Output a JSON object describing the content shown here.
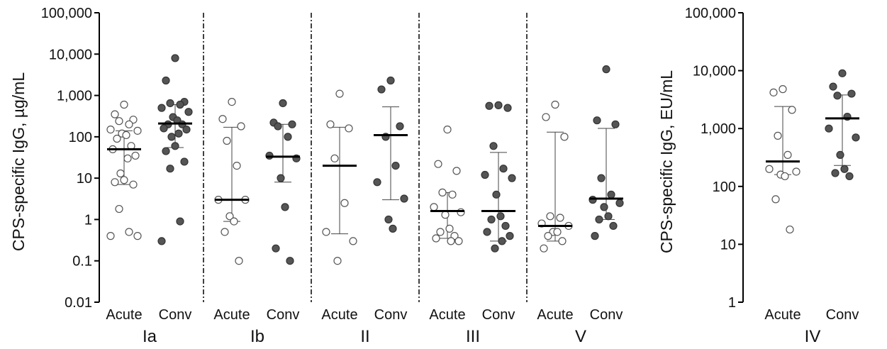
{
  "chart_data": [
    {
      "type": "scatter",
      "scale": "log",
      "ylabel": "CPS-specific IgG, µg/mL",
      "ylim": [
        0.01,
        100000
      ],
      "yticks": [
        "0.01",
        "0.1",
        "1",
        "10",
        "100",
        "1,000",
        "10,000",
        "100,000"
      ],
      "groups": [
        {
          "name": "Ia",
          "series": [
            {
              "name": "Acute",
              "fill": "open",
              "median": 50,
              "range": [
                7,
                140
              ],
              "values": [
                600,
                350,
                260,
                240,
                200,
                150,
                140,
                120,
                110,
                90,
                60,
                50,
                35,
                30,
                13,
                9,
                8,
                7,
                1.8,
                0.5,
                0.4,
                0.4
              ]
            },
            {
              "name": "Conv",
              "fill": "filled",
              "median": 210,
              "range": [
                55,
                600
              ],
              "values": [
                8000,
                2300,
                700,
                650,
                600,
                500,
                400,
                300,
                250,
                200,
                200,
                160,
                150,
                120,
                100,
                60,
                45,
                25,
                17,
                0.9,
                0.3
              ]
            }
          ]
        },
        {
          "name": "Ib",
          "series": [
            {
              "name": "Acute",
              "fill": "open",
              "median": 3,
              "range": [
                0.9,
                170
              ],
              "values": [
                700,
                270,
                180,
                80,
                20,
                3,
                3,
                1.2,
                0.9,
                0.5,
                0.1
              ]
            },
            {
              "name": "Conv",
              "fill": "filled",
              "median": 33,
              "range": [
                8,
                200
              ],
              "values": [
                650,
                220,
                200,
                180,
                100,
                35,
                30,
                10,
                2,
                0.2,
                0.1
              ]
            }
          ]
        },
        {
          "name": "II",
          "series": [
            {
              "name": "Acute",
              "fill": "open",
              "median": 20,
              "range": [
                0.45,
                170
              ],
              "values": [
                1100,
                200,
                160,
                30,
                2.5,
                0.5,
                0.3,
                0.1
              ]
            },
            {
              "name": "Conv",
              "fill": "filled",
              "median": 110,
              "range": [
                3,
                530
              ],
              "values": [
                2300,
                1400,
                180,
                100,
                20,
                8,
                3.2,
                1,
                0.6
              ]
            }
          ]
        },
        {
          "name": "III",
          "series": [
            {
              "name": "Acute",
              "fill": "open",
              "median": 1.6,
              "range": [
                0.35,
                4.5
              ],
              "values": [
                150,
                22,
                15,
                4.5,
                4,
                2,
                1.5,
                1.3,
                0.6,
                0.5,
                0.4,
                0.35,
                0.3,
                0.3
              ]
            },
            {
              "name": "Conv",
              "fill": "filled",
              "median": 1.6,
              "range": [
                0.3,
                42
              ],
              "values": [
                580,
                560,
                500,
                60,
                17,
                12,
                10,
                4,
                1.2,
                1,
                0.7,
                0.5,
                0.4,
                0.3,
                0.2
              ]
            }
          ]
        },
        {
          "name": "V",
          "series": [
            {
              "name": "Acute",
              "fill": "open",
              "median": 0.7,
              "range": [
                0.3,
                130
              ],
              "values": [
                600,
                300,
                100,
                1.2,
                1.1,
                0.8,
                0.7,
                0.5,
                0.5,
                0.4,
                0.3,
                0.2
              ]
            },
            {
              "name": "Conv",
              "fill": "filled",
              "median": 3.2,
              "range": [
                1,
                160
              ],
              "values": [
                4300,
                250,
                200,
                10,
                4,
                3,
                2.5,
                2,
                1.2,
                1,
                0.7,
                0.4
              ]
            }
          ]
        }
      ]
    },
    {
      "type": "scatter",
      "scale": "log",
      "ylabel": "CPS-specific IgG, EU/mL",
      "ylim": [
        1,
        100000
      ],
      "yticks": [
        "1",
        "10",
        "100",
        "1,000",
        "10,000",
        "100,000"
      ],
      "groups": [
        {
          "name": "IV",
          "series": [
            {
              "name": "Acute",
              "fill": "open",
              "median": 270,
              "range": [
                160,
                2400
              ],
              "values": [
                4800,
                4200,
                2100,
                750,
                350,
                200,
                180,
                160,
                150,
                60,
                18
              ]
            },
            {
              "name": "Conv",
              "fill": "filled",
              "median": 1500,
              "range": [
                230,
                3800
              ],
              "values": [
                9000,
                5300,
                4000,
                3700,
                1600,
                1000,
                700,
                350,
                200,
                170,
                150
              ]
            }
          ]
        }
      ]
    }
  ]
}
